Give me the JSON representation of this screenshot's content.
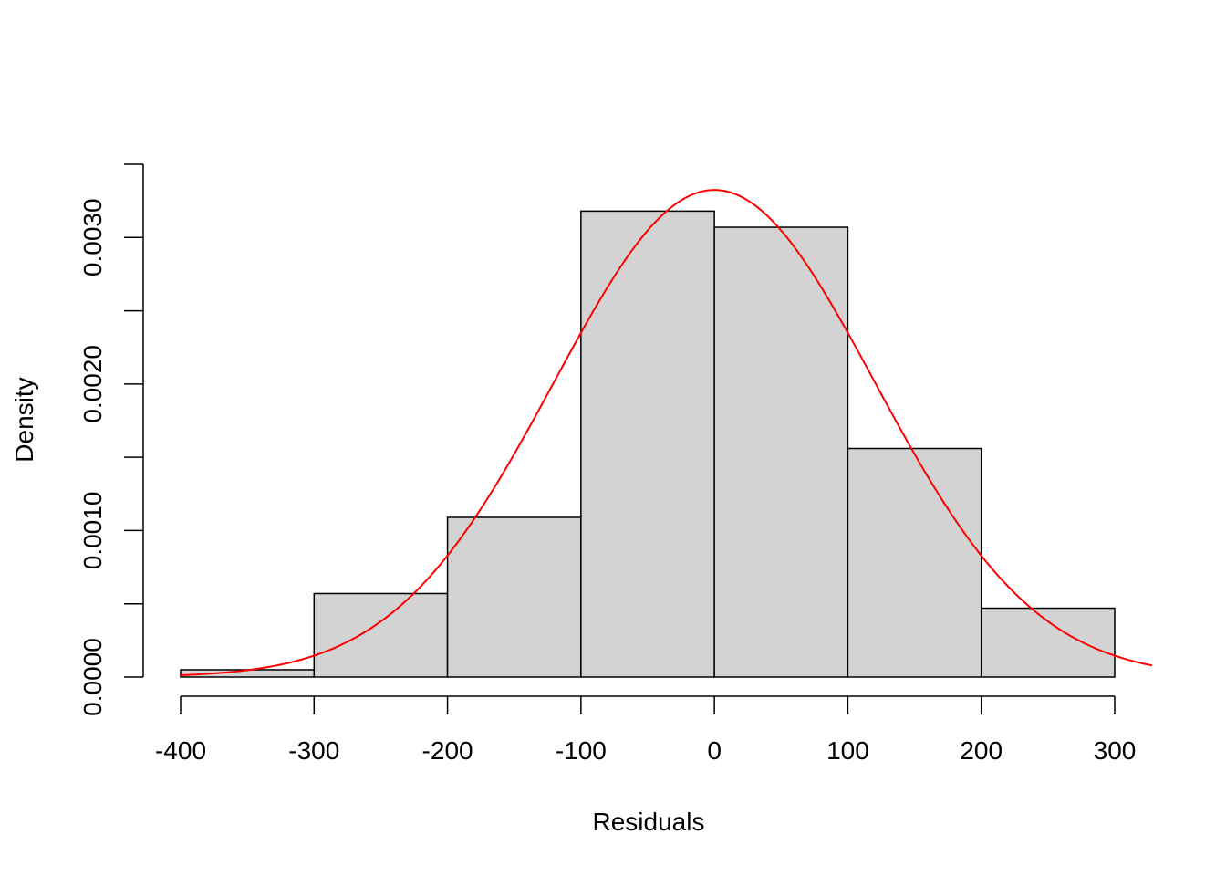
{
  "chart_data": {
    "type": "bar",
    "subtype": "histogram",
    "title": "",
    "xlabel": "Residuals",
    "ylabel": "Density",
    "bins": [
      {
        "from": -400,
        "to": -300,
        "density": 5e-05
      },
      {
        "from": -300,
        "to": -200,
        "density": 0.00057
      },
      {
        "from": -200,
        "to": -100,
        "density": 0.00109
      },
      {
        "from": -100,
        "to": 0,
        "density": 0.00318
      },
      {
        "from": 0,
        "to": 100,
        "density": 0.00307
      },
      {
        "from": 100,
        "to": 200,
        "density": 0.00156
      },
      {
        "from": 200,
        "to": 300,
        "density": 0.00047
      }
    ],
    "x_ticks": [
      -400,
      -300,
      -200,
      -100,
      0,
      100,
      200,
      300
    ],
    "x_tick_labels": [
      "-400",
      "-300",
      "-200",
      "-100",
      "0",
      "100",
      "200",
      "300"
    ],
    "y_ticks": [
      0,
      0.0005,
      0.001,
      0.0015,
      0.002,
      0.0025,
      0.003,
      0.0035
    ],
    "y_tick_labels": [
      "0.0000",
      "",
      "0.0010",
      "",
      "0.0020",
      "",
      "0.0030",
      ""
    ],
    "xlim": [
      -400,
      300
    ],
    "ylim": [
      0,
      0.0035
    ],
    "grid": false,
    "legend": "none",
    "overlay_curve": {
      "type": "normal-density",
      "mean": 0,
      "sd": 120,
      "x_range": [
        -400,
        328
      ],
      "color": "#ff0000"
    },
    "bar_fill": "#d3d3d3",
    "bar_stroke": "#000000"
  }
}
